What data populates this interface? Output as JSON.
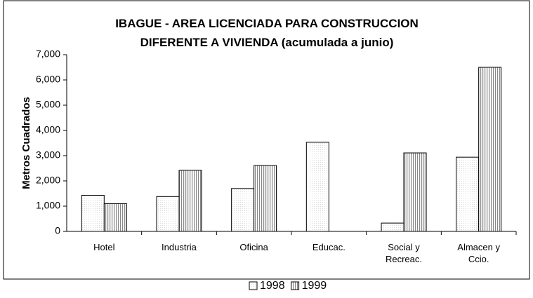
{
  "chart_data": {
    "type": "bar",
    "title": "IBAGUE - AREA LICENCIADA PARA CONSTRUCCION\nDIFERENTE A VIVIENDA (acumulada a junio)",
    "y_label": "Metros Cuadrados",
    "categories": [
      "Hotel",
      "Industria",
      "Oficina",
      "Educac.",
      "Social y\nRecreac.",
      "Almacen y\nCcio."
    ],
    "series": [
      {
        "name": "1998",
        "color": "#d8d8d8",
        "pattern": "dots",
        "values": [
          1430,
          1380,
          1700,
          3530,
          330,
          2940
        ]
      },
      {
        "name": "1999",
        "color": "#888888",
        "pattern": "vertical-lines",
        "values": [
          1100,
          2420,
          2610,
          null,
          3110,
          6500
        ]
      }
    ],
    "ylim": [
      0,
      7000
    ],
    "yticks": [
      0,
      {
        "value": 1000,
        "label": "1,000"
      },
      {
        "value": 2000,
        "label": "2,000"
      },
      {
        "value": 3000,
        "label": "3,000"
      },
      {
        "value": 4000,
        "label": "4,000"
      },
      {
        "value": 5000,
        "label": "5,000"
      },
      {
        "value": 6000,
        "label": "6,000"
      },
      {
        "value": 7000,
        "label": "7,000"
      }
    ],
    "grid": false,
    "legend": "bottom"
  }
}
